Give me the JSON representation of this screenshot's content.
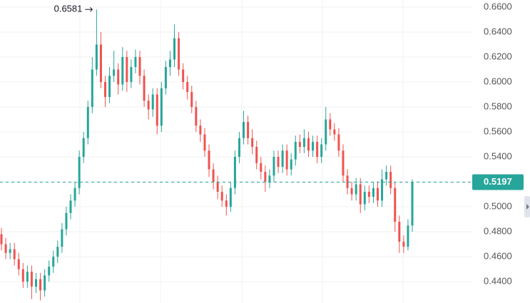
{
  "chart_data": {
    "type": "candlestick",
    "ylim": [
      0.4229,
      0.6657
    ],
    "yticks": [
      {
        "value": 0.44,
        "label": "0.4400"
      },
      {
        "value": 0.46,
        "label": "0.4600"
      },
      {
        "value": 0.48,
        "label": "0.4800"
      },
      {
        "value": 0.5,
        "label": "0.5000"
      },
      {
        "value": 0.52,
        "label": "0.5200"
      },
      {
        "value": 0.54,
        "label": "0.5400"
      },
      {
        "value": 0.56,
        "label": "0.5600"
      },
      {
        "value": 0.58,
        "label": "0.5800"
      },
      {
        "value": 0.6,
        "label": "0.6000"
      },
      {
        "value": 0.62,
        "label": "0.6200"
      },
      {
        "value": 0.64,
        "label": "0.6400"
      },
      {
        "value": 0.66,
        "label": "0.6600"
      }
    ],
    "grid": true,
    "up_color": "#26a69a",
    "down_color": "#ef5350",
    "max_label": 0.6581,
    "last_price": 0.5197,
    "open": [
      0.478,
      0.47,
      0.463,
      0.466,
      0.458,
      0.45,
      0.44,
      0.448,
      0.436,
      0.442,
      0.433,
      0.445,
      0.452,
      0.46,
      0.468,
      0.482,
      0.495,
      0.505,
      0.515,
      0.54,
      0.555,
      0.58,
      0.61,
      0.63,
      0.6,
      0.588,
      0.605,
      0.61,
      0.598,
      0.62,
      0.6,
      0.612,
      0.62,
      0.605,
      0.585,
      0.578,
      0.59,
      0.565,
      0.595,
      0.612,
      0.618,
      0.635,
      0.61,
      0.6,
      0.592,
      0.58,
      0.565,
      0.558,
      0.545,
      0.53,
      0.52,
      0.512,
      0.505,
      0.5,
      0.515,
      0.54,
      0.555,
      0.568,
      0.555,
      0.548,
      0.535,
      0.528,
      0.52,
      0.525,
      0.54,
      0.532,
      0.545,
      0.53,
      0.538,
      0.552,
      0.548,
      0.555,
      0.545,
      0.552,
      0.54,
      0.55,
      0.57,
      0.562,
      0.558,
      0.545,
      0.525,
      0.515,
      0.51,
      0.518,
      0.502,
      0.512,
      0.508,
      0.515,
      0.505,
      0.522,
      0.528,
      0.515,
      0.488,
      0.472,
      0.468,
      0.485
    ],
    "high": [
      0.483,
      0.475,
      0.471,
      0.471,
      0.463,
      0.455,
      0.453,
      0.453,
      0.447,
      0.447,
      0.45,
      0.457,
      0.465,
      0.473,
      0.487,
      0.5,
      0.51,
      0.52,
      0.545,
      0.56,
      0.585,
      0.62,
      0.6581,
      0.64,
      0.605,
      0.612,
      0.625,
      0.615,
      0.628,
      0.625,
      0.618,
      0.626,
      0.625,
      0.61,
      0.59,
      0.595,
      0.595,
      0.6,
      0.617,
      0.625,
      0.646,
      0.64,
      0.615,
      0.605,
      0.597,
      0.585,
      0.57,
      0.563,
      0.55,
      0.535,
      0.525,
      0.517,
      0.51,
      0.52,
      0.545,
      0.56,
      0.577,
      0.573,
      0.562,
      0.553,
      0.54,
      0.533,
      0.53,
      0.545,
      0.545,
      0.55,
      0.55,
      0.543,
      0.557,
      0.558,
      0.562,
      0.56,
      0.557,
      0.557,
      0.555,
      0.58,
      0.575,
      0.567,
      0.563,
      0.55,
      0.53,
      0.52,
      0.523,
      0.523,
      0.517,
      0.517,
      0.52,
      0.52,
      0.53,
      0.533,
      0.533,
      0.52,
      0.493,
      0.477,
      0.49,
      0.522
    ],
    "low": [
      0.465,
      0.458,
      0.458,
      0.453,
      0.445,
      0.435,
      0.435,
      0.426,
      0.431,
      0.425,
      0.428,
      0.44,
      0.447,
      0.455,
      0.463,
      0.477,
      0.49,
      0.5,
      0.51,
      0.535,
      0.55,
      0.575,
      0.605,
      0.595,
      0.58,
      0.583,
      0.6,
      0.59,
      0.593,
      0.592,
      0.595,
      0.607,
      0.598,
      0.58,
      0.57,
      0.572,
      0.558,
      0.56,
      0.59,
      0.605,
      0.612,
      0.605,
      0.594,
      0.586,
      0.575,
      0.56,
      0.552,
      0.54,
      0.524,
      0.514,
      0.506,
      0.5,
      0.493,
      0.496,
      0.51,
      0.535,
      0.55,
      0.55,
      0.542,
      0.53,
      0.522,
      0.512,
      0.515,
      0.52,
      0.527,
      0.527,
      0.525,
      0.525,
      0.533,
      0.543,
      0.543,
      0.54,
      0.54,
      0.535,
      0.535,
      0.545,
      0.557,
      0.553,
      0.54,
      0.52,
      0.51,
      0.505,
      0.505,
      0.495,
      0.497,
      0.503,
      0.503,
      0.5,
      0.5,
      0.517,
      0.51,
      0.48,
      0.463,
      0.463,
      0.465,
      0.48
    ],
    "close": [
      0.47,
      0.463,
      0.466,
      0.458,
      0.45,
      0.44,
      0.448,
      0.436,
      0.442,
      0.433,
      0.445,
      0.452,
      0.46,
      0.468,
      0.482,
      0.495,
      0.505,
      0.515,
      0.54,
      0.555,
      0.58,
      0.61,
      0.63,
      0.6,
      0.588,
      0.605,
      0.61,
      0.598,
      0.62,
      0.6,
      0.612,
      0.62,
      0.605,
      0.585,
      0.578,
      0.59,
      0.565,
      0.595,
      0.612,
      0.618,
      0.635,
      0.61,
      0.6,
      0.592,
      0.58,
      0.565,
      0.558,
      0.545,
      0.53,
      0.52,
      0.512,
      0.505,
      0.5,
      0.515,
      0.54,
      0.555,
      0.568,
      0.555,
      0.548,
      0.535,
      0.528,
      0.52,
      0.525,
      0.54,
      0.532,
      0.545,
      0.53,
      0.538,
      0.552,
      0.548,
      0.555,
      0.545,
      0.552,
      0.54,
      0.55,
      0.57,
      0.562,
      0.558,
      0.545,
      0.525,
      0.515,
      0.51,
      0.518,
      0.502,
      0.512,
      0.508,
      0.515,
      0.505,
      0.522,
      0.528,
      0.515,
      0.488,
      0.472,
      0.468,
      0.485,
      0.5197
    ]
  }
}
